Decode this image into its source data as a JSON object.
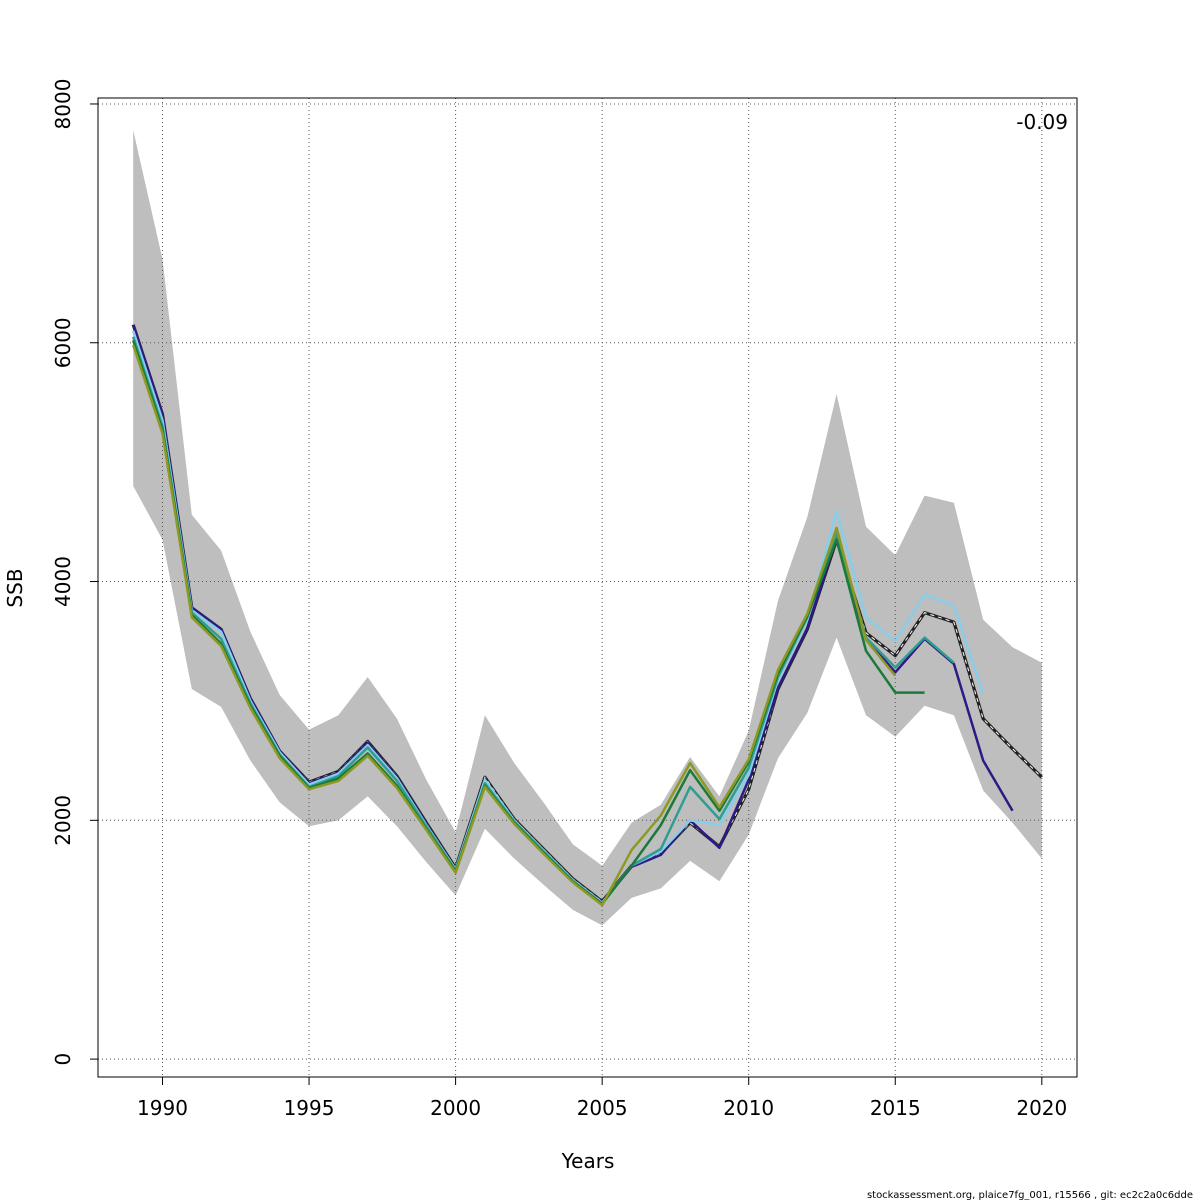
{
  "chart_data": {
    "type": "line",
    "title": "",
    "xlabel": "Years",
    "ylabel": "SSB",
    "xlim": [
      1987.8,
      2021.2
    ],
    "ylim": [
      -150,
      8050
    ],
    "xticks": [
      1990,
      1995,
      2000,
      2005,
      2010,
      2015,
      2020
    ],
    "xtick_labels": [
      "1990",
      "1995",
      "2000",
      "2005",
      "2010",
      "2015",
      "2020"
    ],
    "yticks": [
      0,
      2000,
      4000,
      6000,
      8000
    ],
    "ytick_labels": [
      "0",
      "2000",
      "4000",
      "6000",
      "8000"
    ],
    "grid": true,
    "annotation": "-0.09",
    "footer": "stockassessment.org, plaice7fg_001, r15566 , git: ec2c2a0c6dde",
    "confidence_band": {
      "color": "#bebebe",
      "x": [
        1989,
        1990,
        1991,
        1992,
        1993,
        1994,
        1995,
        1996,
        1997,
        1998,
        1999,
        2000,
        2001,
        2002,
        2003,
        2004,
        2005,
        2006,
        2007,
        2008,
        2009,
        2010,
        2011,
        2012,
        2013,
        2014,
        2015,
        2016,
        2017,
        2018,
        2019,
        2020
      ],
      "lower": [
        4800,
        4350,
        3100,
        2950,
        2500,
        2150,
        1950,
        2000,
        2200,
        1950,
        1650,
        1370,
        1930,
        1680,
        1460,
        1250,
        1120,
        1350,
        1430,
        1660,
        1490,
        1880,
        2520,
        2900,
        3530,
        2880,
        2700,
        2960,
        2880,
        2250,
        1980,
        1680
      ],
      "upper": [
        7780,
        6700,
        4560,
        4260,
        3580,
        3050,
        2760,
        2880,
        3200,
        2850,
        2340,
        1900,
        2880,
        2480,
        2150,
        1800,
        1620,
        1980,
        2130,
        2530,
        2200,
        2750,
        3840,
        4540,
        5570,
        4460,
        4220,
        4720,
        4660,
        3680,
        3450,
        3320
      ]
    },
    "series": [
      {
        "color": "#222222",
        "dash": true,
        "x": [
          1989,
          1990,
          1991,
          1992,
          1993,
          1994,
          1995,
          1996,
          1997,
          1998,
          1999,
          2000,
          2001,
          2002,
          2003,
          2004,
          2005,
          2006,
          2007,
          2008,
          2009,
          2010,
          2011,
          2012,
          2013,
          2014,
          2015,
          2016,
          2017,
          2018,
          2019,
          2020
        ],
        "values": [
          6150,
          5400,
          3780,
          3600,
          3020,
          2580,
          2320,
          2410,
          2660,
          2370,
          1980,
          1600,
          2360,
          2010,
          1760,
          1510,
          1320,
          1620,
          1720,
          1980,
          1780,
          2260,
          3100,
          3600,
          4350,
          3570,
          3380,
          3740,
          3660,
          2850,
          2600,
          2360
        ]
      },
      {
        "color": "#2e1a86",
        "dash": false,
        "x": [
          1989,
          1990,
          1991,
          1992,
          1993,
          1994,
          1995,
          1996,
          1997,
          1998,
          1999,
          2000,
          2001,
          2002,
          2003,
          2004,
          2005,
          2006,
          2007,
          2008,
          2009,
          2010,
          2011,
          2012,
          2013,
          2014,
          2015,
          2016,
          2017,
          2018,
          2019
        ],
        "values": [
          6150,
          5400,
          3780,
          3600,
          3020,
          2580,
          2310,
          2400,
          2650,
          2360,
          1970,
          1590,
          2340,
          2000,
          1750,
          1500,
          1310,
          1610,
          1710,
          2000,
          1770,
          2340,
          3110,
          3610,
          4360,
          3520,
          3240,
          3520,
          3310,
          2500,
          2080
        ]
      },
      {
        "color": "#87ceeb",
        "dash": false,
        "x": [
          1989,
          1990,
          1991,
          1992,
          1993,
          1994,
          1995,
          1996,
          1997,
          1998,
          1999,
          2000,
          2001,
          2002,
          2003,
          2004,
          2005,
          2006,
          2007,
          2008,
          2009,
          2010,
          2011,
          2012,
          2013,
          2014,
          2015,
          2016,
          2017,
          2018
        ],
        "values": [
          6100,
          5350,
          3760,
          3580,
          3000,
          2570,
          2300,
          2390,
          2630,
          2350,
          1960,
          1590,
          2340,
          2000,
          1750,
          1500,
          1310,
          1620,
          1740,
          2000,
          1960,
          2380,
          3180,
          3680,
          4590,
          3700,
          3500,
          3890,
          3800,
          3060
        ]
      },
      {
        "color": "#2e9e8f",
        "dash": false,
        "x": [
          1989,
          1990,
          1991,
          1992,
          1993,
          1994,
          1995,
          1996,
          1997,
          1998,
          1999,
          2000,
          2001,
          2002,
          2003,
          2004,
          2005,
          2006,
          2007,
          2008,
          2009,
          2010,
          2011,
          2012,
          2013,
          2014,
          2015,
          2016,
          2017
        ],
        "values": [
          6050,
          5300,
          3740,
          3520,
          2980,
          2550,
          2280,
          2370,
          2610,
          2330,
          1950,
          1580,
          2310,
          1990,
          1740,
          1490,
          1300,
          1620,
          1760,
          2280,
          2010,
          2440,
          3200,
          3700,
          4400,
          3530,
          3280,
          3530,
          3320
        ]
      },
      {
        "color": "#1b7a3a",
        "dash": false,
        "x": [
          1989,
          1990,
          1991,
          1992,
          1993,
          1994,
          1995,
          1996,
          1997,
          1998,
          1999,
          2000,
          2001,
          2002,
          2003,
          2004,
          2005,
          2006,
          2007,
          2008,
          2009,
          2010,
          2011,
          2012,
          2013,
          2014,
          2015,
          2016
        ],
        "values": [
          6020,
          5270,
          3720,
          3480,
          2960,
          2540,
          2270,
          2350,
          2560,
          2290,
          1930,
          1570,
          2290,
          1980,
          1730,
          1490,
          1300,
          1620,
          1960,
          2420,
          2080,
          2490,
          3230,
          3710,
          4350,
          3420,
          3070,
          3070
        ]
      },
      {
        "color": "#8c9a24",
        "dash": false,
        "x": [
          1989,
          1990,
          1991,
          1992,
          1993,
          1994,
          1995,
          1996,
          1997,
          1998,
          1999,
          2000,
          2001,
          2002,
          2003,
          2004,
          2005,
          2006,
          2007,
          2008,
          2009,
          2010,
          2011,
          2012,
          2013,
          2014,
          2015
        ],
        "values": [
          5980,
          5240,
          3700,
          3460,
          2940,
          2520,
          2260,
          2330,
          2540,
          2270,
          1920,
          1560,
          2280,
          1970,
          1720,
          1480,
          1290,
          1750,
          2040,
          2480,
          2110,
          2510,
          3260,
          3730,
          4450,
          3510,
          3210
        ]
      }
    ]
  }
}
